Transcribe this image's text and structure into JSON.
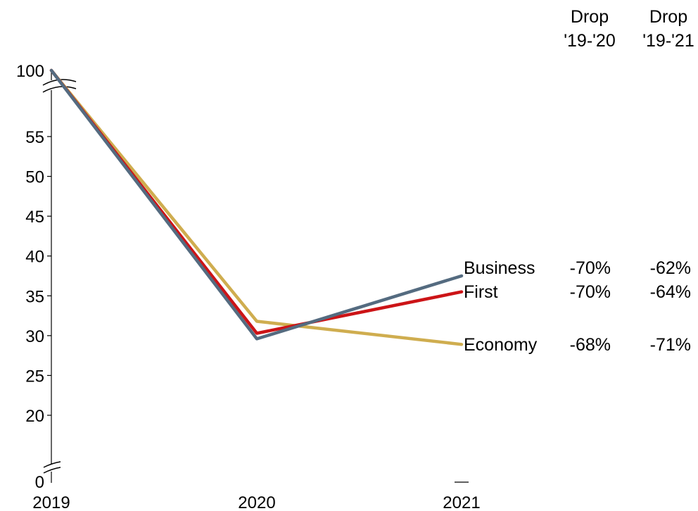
{
  "chart_data": {
    "type": "line",
    "x": [
      "2019",
      "2020",
      "2021"
    ],
    "y_ticks": [
      "0",
      "20",
      "25",
      "30",
      "35",
      "40",
      "45",
      "50",
      "55",
      "100"
    ],
    "y_axis_breaks": true,
    "grid": false,
    "legend": "inline labels at line ends",
    "series": [
      {
        "name": "Business",
        "values": [
          100,
          29.6,
          37.5
        ],
        "color": "#546b80",
        "drop_19_20": "-70%",
        "drop_19_21": "-62%"
      },
      {
        "name": "First",
        "values": [
          100,
          30.3,
          35.5
        ],
        "color": "#cc1417",
        "drop_19_20": "-70%",
        "drop_19_21": "-64%"
      },
      {
        "name": "Economy",
        "values": [
          100,
          31.8,
          28.9
        ],
        "color": "#cfad4f",
        "drop_19_20": "-68%",
        "drop_19_21": "-71%"
      }
    ],
    "columns": [
      {
        "line1": "Drop",
        "line2": "'19-'20"
      },
      {
        "line1": "Drop",
        "line2": "'19-'21"
      }
    ]
  }
}
